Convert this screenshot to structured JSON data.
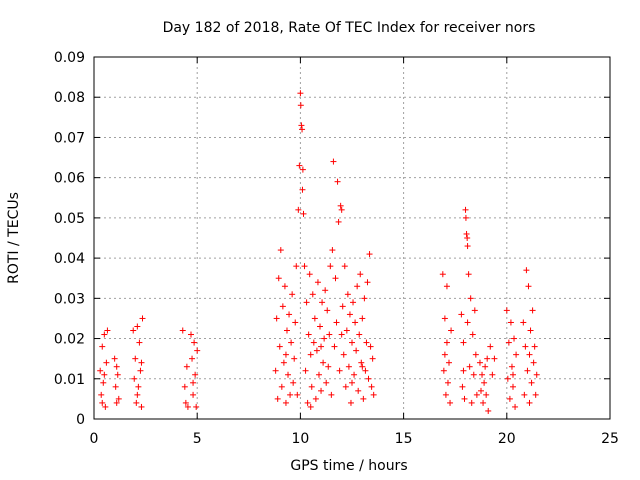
{
  "chart_data": {
    "type": "scatter",
    "title": "Day 182 of 2018, Rate Of TEC Index for receiver nors",
    "xlabel": "GPS time / hours",
    "ylabel": "ROTI / TECUs",
    "xlim": [
      0,
      25
    ],
    "ylim": [
      0,
      0.09
    ],
    "x_ticks": [
      0,
      5,
      10,
      15,
      20,
      25
    ],
    "x_tick_labels": [
      "0",
      "5",
      "10",
      "15",
      "20",
      "25"
    ],
    "y_ticks": [
      0,
      0.01,
      0.02,
      0.03,
      0.04,
      0.05,
      0.06,
      0.07,
      0.08,
      0.09
    ],
    "y_tick_labels": [
      "0",
      "0.01",
      "0.02",
      "0.03",
      "0.04",
      "0.05",
      "0.06",
      "0.07",
      "0.08",
      "0.09"
    ],
    "grid": true,
    "marker": "plus",
    "color": "#ff0000",
    "points": [
      [
        0.3,
        0.012
      ],
      [
        0.35,
        0.006
      ],
      [
        0.4,
        0.018
      ],
      [
        0.45,
        0.009
      ],
      [
        0.5,
        0.021
      ],
      [
        0.55,
        0.003
      ],
      [
        0.6,
        0.014
      ],
      [
        0.65,
        0.022
      ],
      [
        0.4,
        0.004
      ],
      [
        0.5,
        0.011
      ],
      [
        1.0,
        0.015
      ],
      [
        1.05,
        0.008
      ],
      [
        1.1,
        0.004
      ],
      [
        1.15,
        0.011
      ],
      [
        1.2,
        0.005
      ],
      [
        1.1,
        0.013
      ],
      [
        1.9,
        0.022
      ],
      [
        1.95,
        0.01
      ],
      [
        2.0,
        0.015
      ],
      [
        2.05,
        0.004
      ],
      [
        2.1,
        0.023
      ],
      [
        2.15,
        0.008
      ],
      [
        2.2,
        0.019
      ],
      [
        2.25,
        0.012
      ],
      [
        2.3,
        0.003
      ],
      [
        2.35,
        0.025
      ],
      [
        2.3,
        0.014
      ],
      [
        2.1,
        0.006
      ],
      [
        4.3,
        0.022
      ],
      [
        4.4,
        0.008
      ],
      [
        4.45,
        0.004
      ],
      [
        4.5,
        0.013
      ],
      [
        4.55,
        0.003
      ],
      [
        4.7,
        0.021
      ],
      [
        4.75,
        0.015
      ],
      [
        4.8,
        0.006
      ],
      [
        4.85,
        0.019
      ],
      [
        4.9,
        0.011
      ],
      [
        4.95,
        0.003
      ],
      [
        5.0,
        0.017
      ],
      [
        4.8,
        0.009
      ],
      [
        8.8,
        0.012
      ],
      [
        8.85,
        0.025
      ],
      [
        8.9,
        0.005
      ],
      [
        8.95,
        0.035
      ],
      [
        9.0,
        0.018
      ],
      [
        9.05,
        0.042
      ],
      [
        9.1,
        0.008
      ],
      [
        9.15,
        0.028
      ],
      [
        9.2,
        0.014
      ],
      [
        9.25,
        0.033
      ],
      [
        9.3,
        0.004
      ],
      [
        9.35,
        0.022
      ],
      [
        9.4,
        0.011
      ],
      [
        9.45,
        0.026
      ],
      [
        9.5,
        0.006
      ],
      [
        9.55,
        0.019
      ],
      [
        9.6,
        0.031
      ],
      [
        9.65,
        0.009
      ],
      [
        9.7,
        0.015
      ],
      [
        9.75,
        0.024
      ],
      [
        9.8,
        0.038
      ],
      [
        9.85,
        0.006
      ],
      [
        9.9,
        0.052
      ],
      [
        9.95,
        0.063
      ],
      [
        10.0,
        0.081
      ],
      [
        10.02,
        0.078
      ],
      [
        10.05,
        0.073
      ],
      [
        10.08,
        0.072
      ],
      [
        10.1,
        0.057
      ],
      [
        10.12,
        0.062
      ],
      [
        10.15,
        0.051
      ],
      [
        10.2,
        0.038
      ],
      [
        10.25,
        0.012
      ],
      [
        10.3,
        0.029
      ],
      [
        10.35,
        0.004
      ],
      [
        10.4,
        0.021
      ],
      [
        10.45,
        0.036
      ],
      [
        10.5,
        0.016
      ],
      [
        10.55,
        0.008
      ],
      [
        10.6,
        0.031
      ],
      [
        10.65,
        0.019
      ],
      [
        10.7,
        0.025
      ],
      [
        10.75,
        0.005
      ],
      [
        10.8,
        0.017
      ],
      [
        10.85,
        0.034
      ],
      [
        10.9,
        0.011
      ],
      [
        10.95,
        0.023
      ],
      [
        11.0,
        0.007
      ],
      [
        11.05,
        0.029
      ],
      [
        11.1,
        0.014
      ],
      [
        11.15,
        0.02
      ],
      [
        11.2,
        0.032
      ],
      [
        11.25,
        0.009
      ],
      [
        11.3,
        0.027
      ],
      [
        11.35,
        0.013
      ],
      [
        11.4,
        0.021
      ],
      [
        11.45,
        0.038
      ],
      [
        11.5,
        0.006
      ],
      [
        11.55,
        0.042
      ],
      [
        11.6,
        0.064
      ],
      [
        11.65,
        0.018
      ],
      [
        11.7,
        0.035
      ],
      [
        11.75,
        0.024
      ],
      [
        11.8,
        0.059
      ],
      [
        11.85,
        0.049
      ],
      [
        11.9,
        0.012
      ],
      [
        11.95,
        0.053
      ],
      [
        12.0,
        0.052
      ],
      [
        12.05,
        0.028
      ],
      [
        12.1,
        0.016
      ],
      [
        12.15,
        0.038
      ],
      [
        12.2,
        0.008
      ],
      [
        12.25,
        0.022
      ],
      [
        12.3,
        0.031
      ],
      [
        12.35,
        0.013
      ],
      [
        12.4,
        0.026
      ],
      [
        12.45,
        0.004
      ],
      [
        12.5,
        0.019
      ],
      [
        12.55,
        0.029
      ],
      [
        12.6,
        0.011
      ],
      [
        12.65,
        0.024
      ],
      [
        12.7,
        0.017
      ],
      [
        12.75,
        0.033
      ],
      [
        12.8,
        0.007
      ],
      [
        12.85,
        0.021
      ],
      [
        12.9,
        0.036
      ],
      [
        12.95,
        0.014
      ],
      [
        13.0,
        0.025
      ],
      [
        13.05,
        0.005
      ],
      [
        13.1,
        0.03
      ],
      [
        13.15,
        0.012
      ],
      [
        13.2,
        0.019
      ],
      [
        13.25,
        0.034
      ],
      [
        13.3,
        0.01
      ],
      [
        13.35,
        0.041
      ],
      [
        13.4,
        0.018
      ],
      [
        13.45,
        0.008
      ],
      [
        13.5,
        0.015
      ],
      [
        13.55,
        0.006
      ],
      [
        9.3,
        0.016
      ],
      [
        10.5,
        0.003
      ],
      [
        11.0,
        0.018
      ],
      [
        12.0,
        0.021
      ],
      [
        12.5,
        0.009
      ],
      [
        13.0,
        0.013
      ],
      [
        16.9,
        0.036
      ],
      [
        16.95,
        0.012
      ],
      [
        17.0,
        0.025
      ],
      [
        17.05,
        0.006
      ],
      [
        17.1,
        0.019
      ],
      [
        17.15,
        0.009
      ],
      [
        17.2,
        0.014
      ],
      [
        17.25,
        0.004
      ],
      [
        17.3,
        0.022
      ],
      [
        17.1,
        0.033
      ],
      [
        17.0,
        0.016
      ],
      [
        17.8,
        0.026
      ],
      [
        17.85,
        0.008
      ],
      [
        17.9,
        0.019
      ],
      [
        17.95,
        0.005
      ],
      [
        18.0,
        0.052
      ],
      [
        18.02,
        0.05
      ],
      [
        18.05,
        0.046
      ],
      [
        18.08,
        0.045
      ],
      [
        18.1,
        0.043
      ],
      [
        18.15,
        0.036
      ],
      [
        18.2,
        0.013
      ],
      [
        18.25,
        0.03
      ],
      [
        18.3,
        0.004
      ],
      [
        18.35,
        0.021
      ],
      [
        18.4,
        0.011
      ],
      [
        18.45,
        0.027
      ],
      [
        18.5,
        0.016
      ],
      [
        18.55,
        0.006
      ],
      [
        18.1,
        0.024
      ],
      [
        17.9,
        0.012
      ],
      [
        18.7,
        0.014
      ],
      [
        18.75,
        0.007
      ],
      [
        18.8,
        0.011
      ],
      [
        18.85,
        0.004
      ],
      [
        18.9,
        0.009
      ],
      [
        18.95,
        0.013
      ],
      [
        19.0,
        0.006
      ],
      [
        19.05,
        0.015
      ],
      [
        19.1,
        0.002
      ],
      [
        19.2,
        0.018
      ],
      [
        19.3,
        0.011
      ],
      [
        19.4,
        0.015
      ],
      [
        20.0,
        0.027
      ],
      [
        20.05,
        0.01
      ],
      [
        20.1,
        0.019
      ],
      [
        20.15,
        0.005
      ],
      [
        20.2,
        0.024
      ],
      [
        20.25,
        0.013
      ],
      [
        20.3,
        0.008
      ],
      [
        20.35,
        0.02
      ],
      [
        20.4,
        0.003
      ],
      [
        20.45,
        0.016
      ],
      [
        20.3,
        0.011
      ],
      [
        20.8,
        0.024
      ],
      [
        20.85,
        0.006
      ],
      [
        20.9,
        0.018
      ],
      [
        20.95,
        0.037
      ],
      [
        21.0,
        0.012
      ],
      [
        21.05,
        0.033
      ],
      [
        21.1,
        0.004
      ],
      [
        21.15,
        0.022
      ],
      [
        21.2,
        0.009
      ],
      [
        21.25,
        0.027
      ],
      [
        21.3,
        0.014
      ],
      [
        21.35,
        0.018
      ],
      [
        21.4,
        0.006
      ],
      [
        21.45,
        0.011
      ],
      [
        21.1,
        0.016
      ]
    ]
  }
}
